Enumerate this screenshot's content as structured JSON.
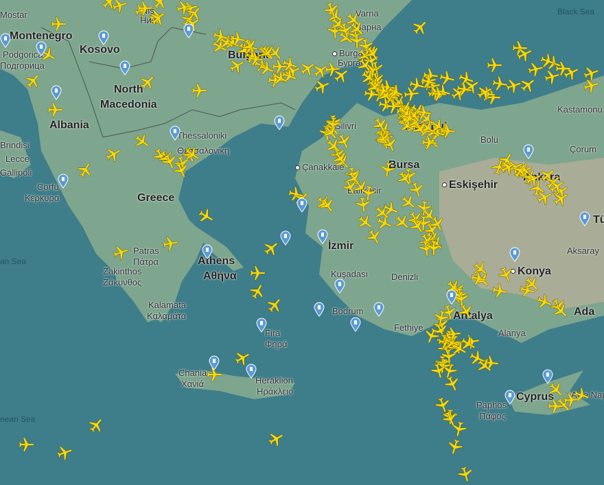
{
  "map": {
    "colors": {
      "sea": "#3e7d8a",
      "land": "#7ea58e",
      "plateau": "#b4ae98",
      "aircraft": "#f5d80c",
      "airport_pin": "#5b9bd5",
      "border": "#333333"
    },
    "labels": {
      "mostar": "Mostar",
      "montenegro": "Montenegro",
      "podgorica": "Podgorica",
      "podgorica_cyr": "Подгорица",
      "kosovo": "Kosovo",
      "nis": "Niš",
      "nis_cyr": "Ниш",
      "bulgaria": "Bulgaria",
      "varna": "Varna",
      "varna_cyr": "Варна",
      "burgas": "Burgas",
      "burgas_cyr": "Бургас",
      "black_sea": "Black Sea",
      "north_macedonia_1": "North",
      "north_macedonia_2": "Macedonia",
      "albania": "Albania",
      "brindisi": "Brindisi",
      "lecce": "Lecce",
      "gallipoli": "Gallipoli",
      "corfu": "Corfu",
      "corfu_gr": "Κέρκυρα",
      "thessaloniki": "Thessaloniki",
      "thessaloniki_gr": "Θεσσαλονίκη",
      "greece": "Greece",
      "silivri": "Silivri",
      "istanbul": "Istanbul",
      "canakkale": "Çanakkale",
      "bursa": "Bursa",
      "balikesir": "Balıkesir",
      "eskisehir": "Eskişehir",
      "bolu": "Bolu",
      "kastamonu": "Kastamonu",
      "corum": "Çorum",
      "ankara": "Ankara",
      "turkey": "Tü",
      "izmir": "İzmir",
      "kusadasi": "Kuşadası",
      "denizli": "Denizli",
      "bodrum": "Bodrum",
      "fethiye": "Fethiye",
      "antalya": "Antalya",
      "alanya": "Alanya",
      "konya": "Konya",
      "aksaray": "Aksaray",
      "adana": "Ada",
      "patras": "Patras",
      "patras_gr": "Πάτρα",
      "zakinthos": "Zakinthos",
      "zakinthos_gr": "Ζάκυνθος",
      "athens": "Athens",
      "athens_gr": "Αθήνα",
      "kalamata": "Kalamata",
      "kalamata_gr": "Καλαμάτα",
      "fira": "Fira",
      "fira_gr": "Φηρά",
      "chania": "Chania",
      "chania_gr": "Χανιά",
      "heraklion": "Heraklion",
      "heraklion_gr": "Ηράκλειο",
      "cyprus": "Cyprus",
      "paphos": "Paphos",
      "paphos_gr": "Πάφος",
      "ayia_napa": "Ayia Nap",
      "ionian_sea_1": "an Sea",
      "ionian_sea_2": "nean Sea"
    },
    "aircraft_icon": "airplane-icon",
    "airport_icon": "control-tower-pin-icon"
  }
}
